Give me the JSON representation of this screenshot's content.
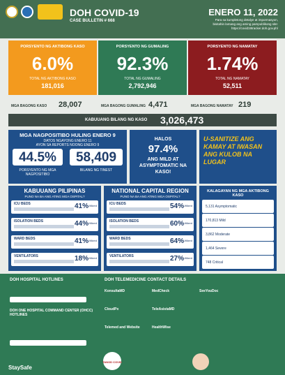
{
  "header": {
    "title": "DOH COVID-19",
    "bulletin": "CASE BULLETIN # 668",
    "date": "ENERO 11, 2022",
    "note_1": "Para sa kumpletong detalye at impormasyon,",
    "note_2": "bisitahin lamang ang aming pampublikong site:",
    "note_3": "https://covid19tracker.doh.gov.ph/"
  },
  "summary": [
    {
      "label": "PORSYENTO NG AKTIBONG KASO",
      "percent": "6.0%",
      "total_label": "TOTAL NG AKTIBONG KASO",
      "total": "181,016"
    },
    {
      "label": "PORSYENTO NG GUMALING",
      "percent": "92.3%",
      "total_label": "TOTAL NG GUMALING",
      "total": "2,792,946"
    },
    {
      "label": "PORSYENTO NG NAMATAY",
      "percent": "1.74%",
      "total_label": "TOTAL NG NAMATAY",
      "total": "52,511"
    }
  ],
  "new_cases": [
    {
      "label": "MGA BAGONG KASO",
      "value": "28,007"
    },
    {
      "label": "MGA BAGONG GUMALING",
      "value": "4,471"
    },
    {
      "label": "MGA BAGONG NAMATAY",
      "value": "219"
    }
  ],
  "total_cases": {
    "label": "KABUUANG BILANG NG KASO",
    "value": "3,026,473"
  },
  "testing": {
    "title": "MGA NAGPOSITIBO HULING ENERO 9",
    "sub_1": "DATOS NGAYONG ENERO 11",
    "sub_2": "AYON SA REPORTS NOONG ENERO 9",
    "positivity": "44.5%",
    "positivity_label": "PORSYENTO NG MGA NAGPOSITIBO",
    "tested": "58,409",
    "tested_label": "BILANG NG TINEST"
  },
  "mild": {
    "pre": "HALOS",
    "value": "97.4%",
    "text": "ANG MILD AT ASYMPTOMATIC NA KASO!"
  },
  "reminder": "U-SANITIZE ANG KAMAY AT IWASAN ANG KULOB NA LUGAR",
  "hospitals": [
    {
      "title": "KABUUANG PILIPINAS",
      "subtitle": "PUNO NA BA ANG ATING MGA OSPITAL?",
      "rows": [
        {
          "label": "ICU BEDS",
          "value": "41%",
          "note": "Utilized"
        },
        {
          "label": "ISOLATION BEDS",
          "value": "44%",
          "note": "Utilized"
        },
        {
          "label": "WARD BEDS",
          "value": "41%",
          "note": "Utilized"
        },
        {
          "label": "VENTILATORS",
          "value": "18%",
          "note": "Utilized"
        }
      ]
    },
    {
      "title": "NATIONAL CAPITAL REGION",
      "subtitle": "PUNO NA BA ANG ATING MGA OSPITAL?",
      "rows": [
        {
          "label": "ICU BEDS",
          "value": "54%",
          "note": "Utilized"
        },
        {
          "label": "ISOLATION BEDS",
          "value": "60%",
          "note": "Utilized"
        },
        {
          "label": "WARD BEDS",
          "value": "64%",
          "note": "Utilized"
        },
        {
          "label": "VENTILATORS",
          "value": "27%",
          "note": "Utilized"
        }
      ]
    }
  ],
  "status": {
    "title": "KALAGAYAN NG MGA AKTIBONG KASO",
    "rows": [
      "5,131 Asymptomatic",
      "170,813 Mild",
      "3,862 Moderate",
      "1,464 Severe",
      "748 Critical"
    ]
  },
  "footer": {
    "hotlines_title": "DOH HOSPITAL HOTLINES",
    "ohcc_title": "DOH ONE HOSPITAL COMMAND CENTER (OHCC) HOTLINES",
    "telemed_title": "DOH TELEMEDICINE CONTACT DETAILS",
    "telemed": [
      "KonsultaMD",
      "CloudPx",
      "Telemed and Website",
      "MedCheck",
      "TeleAsistaMD",
      "HealthWise",
      "SeeYouDoc"
    ],
    "staysafe": "StaySafe",
    "tanod": "TANOD COVID"
  }
}
